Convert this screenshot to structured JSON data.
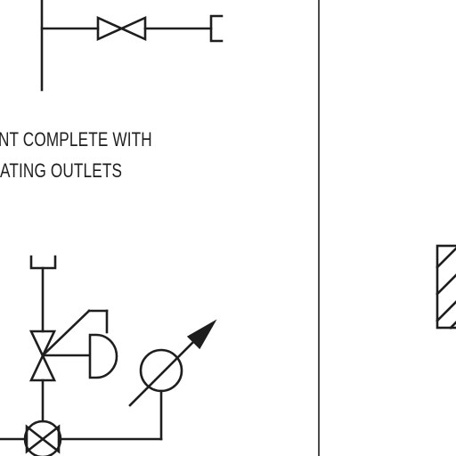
{
  "diagram": {
    "note_lines": [
      "NT COMPLETE WITH",
      "ATING OUTLETS"
    ],
    "symbols": {
      "upper_valve": "gate-valve-icon",
      "upper_end_cap": "pipe-end-cap-icon",
      "top_connection": "open-pipe-end-icon",
      "regulator": "pressure-regulating-valve-icon",
      "diaphragm": "diaphragm-actuator-icon",
      "gauge": "pressure-gauge-icon",
      "lower_valve": "ball-valve-icon",
      "hatched_box": "hatched-equipment-icon"
    },
    "line_color": "#1e1e1e"
  }
}
